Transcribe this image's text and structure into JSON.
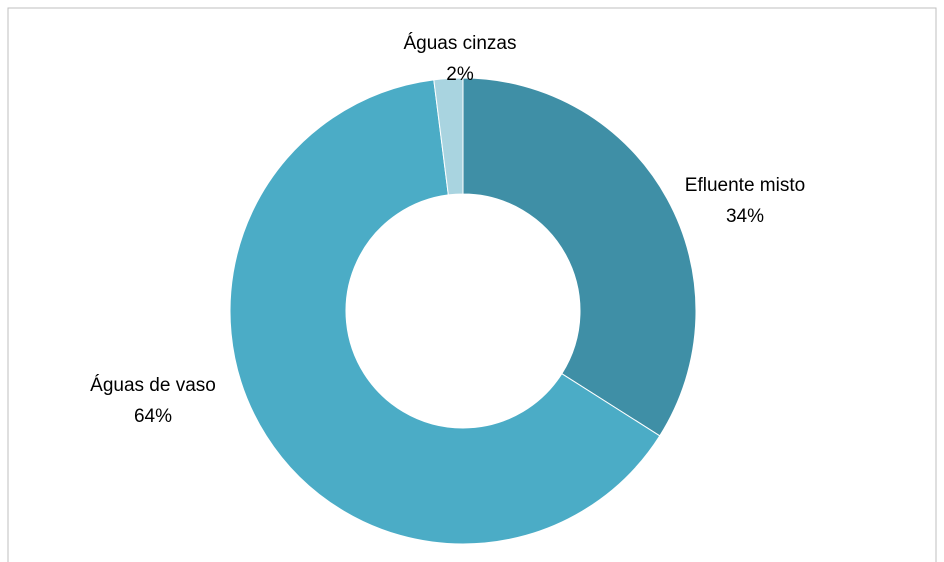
{
  "chart_data": {
    "type": "donut",
    "categories": [
      "Efluente misto",
      "Águas de vaso",
      "Águas cinzas"
    ],
    "values": [
      34,
      64,
      2
    ],
    "value_labels": [
      "34%",
      "64%",
      "2%"
    ],
    "colors": [
      "#3f8fa6",
      "#4bacc6",
      "#a9d4e0"
    ]
  }
}
